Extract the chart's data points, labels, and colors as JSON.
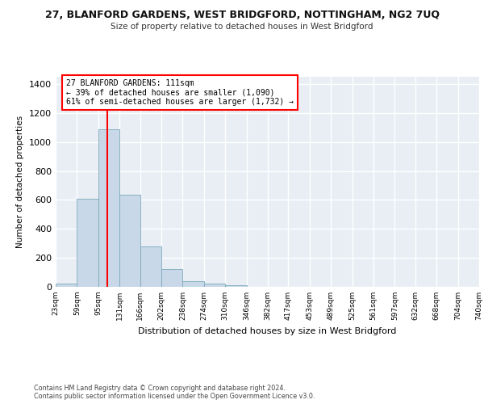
{
  "title": "27, BLANFORD GARDENS, WEST BRIDGFORD, NOTTINGHAM, NG2 7UQ",
  "subtitle": "Size of property relative to detached houses in West Bridgford",
  "xlabel": "Distribution of detached houses by size in West Bridgford",
  "ylabel": "Number of detached properties",
  "bar_color": "#c8d8e8",
  "bar_edge_color": "#7aaabb",
  "bg_color": "#e8eef4",
  "grid_color": "#ffffff",
  "marker_line_color": "red",
  "marker_value": 111,
  "annotation_text": "27 BLANFORD GARDENS: 111sqm\n← 39% of detached houses are smaller (1,090)\n61% of semi-detached houses are larger (1,732) →",
  "bin_edges": [
    23,
    59,
    95,
    131,
    166,
    202,
    238,
    274,
    310,
    346,
    382,
    417,
    453,
    489,
    525,
    561,
    597,
    632,
    668,
    704,
    740
  ],
  "bar_heights": [
    25,
    610,
    1090,
    635,
    280,
    120,
    38,
    20,
    12,
    0,
    0,
    0,
    0,
    0,
    0,
    0,
    0,
    0,
    0,
    0
  ],
  "ylim": [
    0,
    1450
  ],
  "yticks": [
    0,
    200,
    400,
    600,
    800,
    1000,
    1200,
    1400
  ],
  "footer_line1": "Contains HM Land Registry data © Crown copyright and database right 2024.",
  "footer_line2": "Contains public sector information licensed under the Open Government Licence v3.0."
}
